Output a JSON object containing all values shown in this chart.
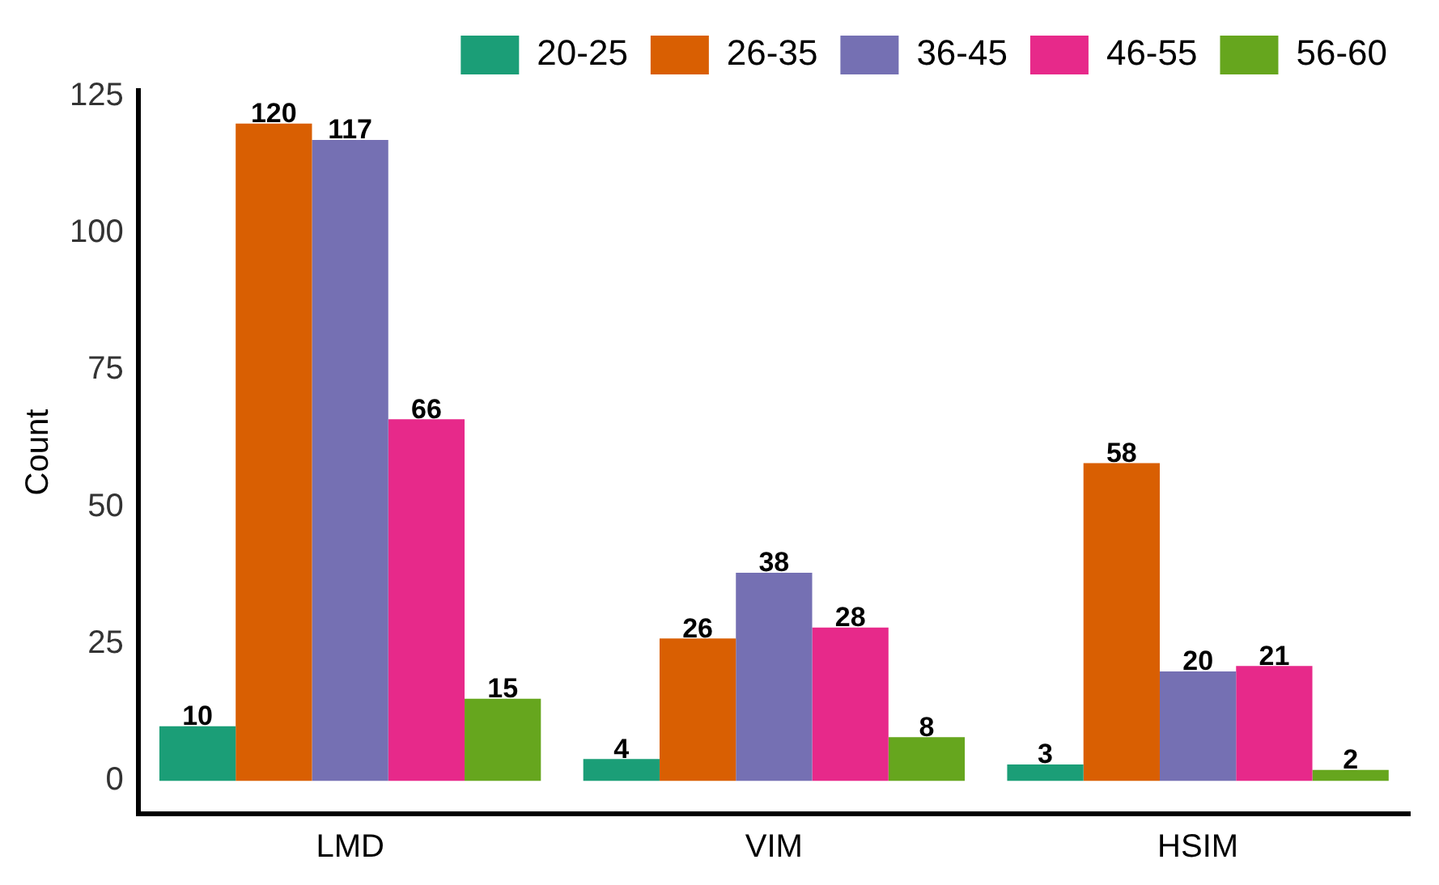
{
  "chart_data": {
    "type": "bar",
    "ylabel": "Count",
    "categories": [
      "LMD",
      "VIM",
      "HSIM"
    ],
    "series": [
      {
        "name": "20-25",
        "color": "#1b9e77",
        "values": [
          10,
          4,
          3
        ]
      },
      {
        "name": "26-35",
        "color": "#d95f02",
        "values": [
          120,
          26,
          58
        ]
      },
      {
        "name": "36-45",
        "color": "#7570b3",
        "values": [
          117,
          38,
          20
        ]
      },
      {
        "name": "46-55",
        "color": "#e7298a",
        "values": [
          66,
          28,
          21
        ]
      },
      {
        "name": "56-60",
        "color": "#66a61e",
        "values": [
          15,
          8,
          2
        ]
      }
    ],
    "ylim": [
      -6,
      126
    ],
    "yticks": [
      0,
      25,
      50,
      75,
      100,
      125
    ],
    "grid": false,
    "legend": "top",
    "data_labels": true
  }
}
